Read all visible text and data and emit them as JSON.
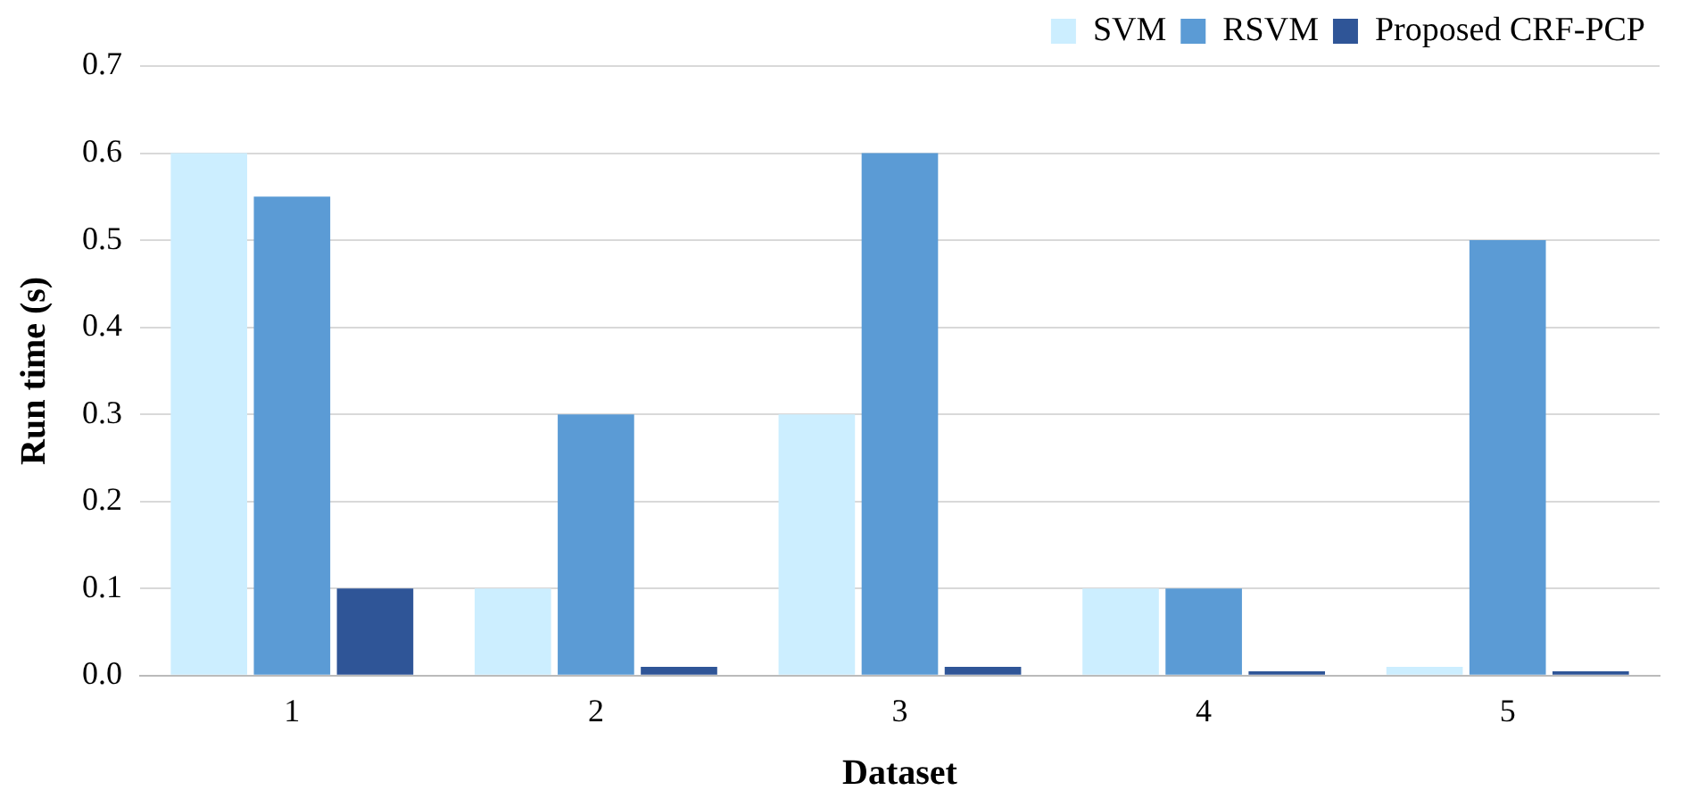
{
  "chart_data": {
    "type": "bar",
    "xlabel": "Dataset",
    "ylabel": "Run time (s)",
    "categories": [
      "1",
      "2",
      "3",
      "4",
      "5"
    ],
    "series": [
      {
        "name": "SVM",
        "color": "#cceeff",
        "values": [
          0.6,
          0.1,
          0.3,
          0.1,
          0.01
        ]
      },
      {
        "name": "RSVM",
        "color": "#5b9bd5",
        "values": [
          0.55,
          0.3,
          0.6,
          0.1,
          0.5
        ]
      },
      {
        "name": "Proposed CRF-PCP",
        "color": "#2f5597",
        "values": [
          0.1,
          0.01,
          0.01,
          0.005,
          0.005
        ]
      }
    ],
    "ylim": [
      0,
      0.7
    ],
    "yticks": [
      {
        "value": 0,
        "label": "0.0"
      },
      {
        "value": 0.1,
        "label": "0.1"
      },
      {
        "value": 0.2,
        "label": "0.2"
      },
      {
        "value": 0.3,
        "label": "0.3"
      },
      {
        "value": 0.4,
        "label": "0.4"
      },
      {
        "value": 0.5,
        "label": "0.5"
      },
      {
        "value": 0.6,
        "label": "0.6"
      },
      {
        "value": 0.7,
        "label": "0.7"
      }
    ],
    "grid": "y",
    "legend": "top right"
  }
}
